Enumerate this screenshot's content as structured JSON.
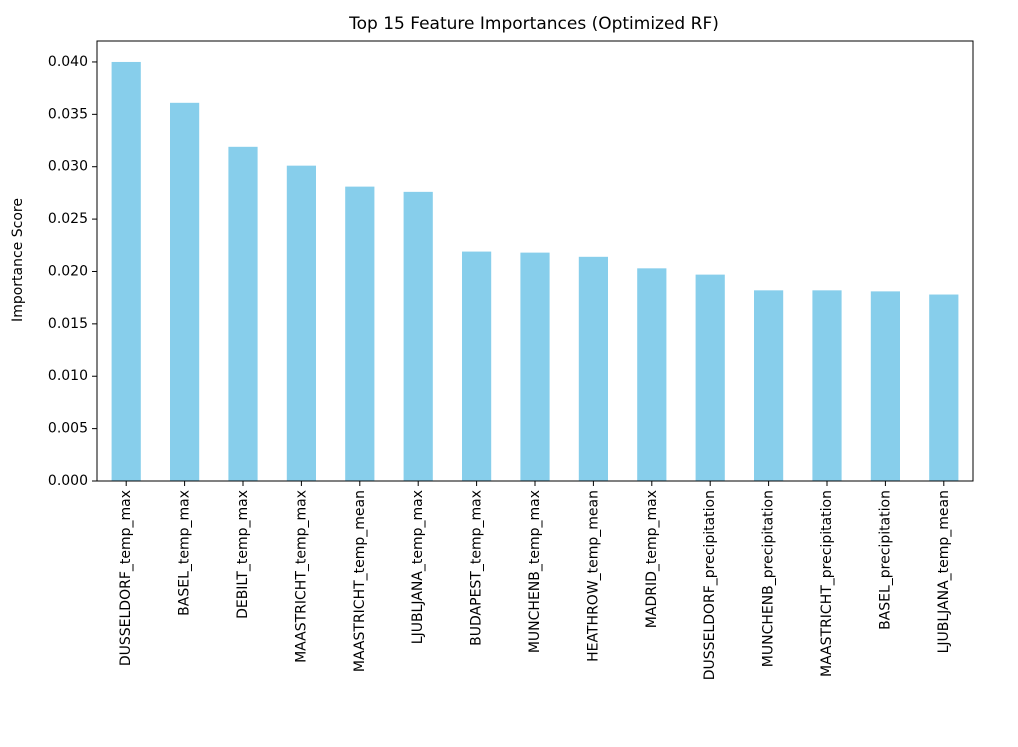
{
  "chart_data": {
    "type": "bar",
    "title": "Top 15 Feature Importances (Optimized RF)",
    "xlabel": "",
    "ylabel": "Importance Score",
    "categories": [
      "DUSSELDORF_temp_max",
      "BASEL_temp_max",
      "DEBILT_temp_max",
      "MAASTRICHT_temp_max",
      "MAASTRICHT_temp_mean",
      "LJUBLJANA_temp_max",
      "BUDAPEST_temp_max",
      "MUNCHENB_temp_max",
      "HEATHROW_temp_mean",
      "MADRID_temp_max",
      "DUSSELDORF_precipitation",
      "MUNCHENB_precipitation",
      "MAASTRICHT_precipitation",
      "BASEL_precipitation",
      "LJUBLJANA_temp_mean"
    ],
    "values": [
      0.04,
      0.0361,
      0.0319,
      0.0301,
      0.0281,
      0.0276,
      0.0219,
      0.0218,
      0.0214,
      0.0203,
      0.0197,
      0.0182,
      0.0182,
      0.0181,
      0.0178
    ],
    "ylim": [
      0,
      0.042
    ],
    "yticks": [
      "0.000",
      "0.005",
      "0.010",
      "0.015",
      "0.020",
      "0.025",
      "0.030",
      "0.035",
      "0.040"
    ],
    "ytick_values": [
      0,
      0.005,
      0.01,
      0.015,
      0.02,
      0.025,
      0.03,
      0.035,
      0.04
    ],
    "bar_color": "#87ceeb",
    "grid": false,
    "legend": "none"
  }
}
